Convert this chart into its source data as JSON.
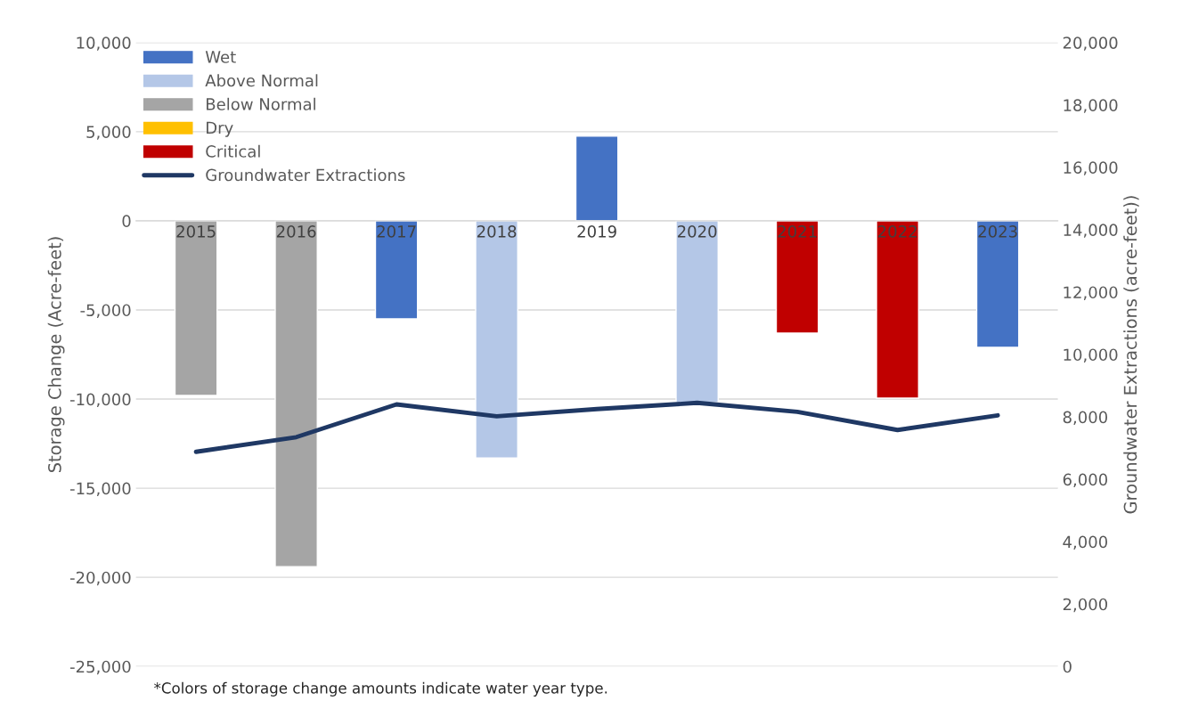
{
  "chart_data": {
    "type": "bar",
    "categories": [
      "2015",
      "2016",
      "2017",
      "2018",
      "2019",
      "2020",
      "2021",
      "2022",
      "2023"
    ],
    "ylabel": "Storage Change (Acre-feet)",
    "y2label": "Groundwater Extractions (acre-feet))",
    "ylim": [
      -25000,
      10000
    ],
    "yticks": [
      {
        "value": -25000,
        "label": "-25,000"
      },
      {
        "value": -20000,
        "label": "-20,000"
      },
      {
        "value": -15000,
        "label": "-15,000"
      },
      {
        "value": -10000,
        "label": "-10,000"
      },
      {
        "value": -5000,
        "label": "-5,000"
      },
      0,
      {
        "value": 5000,
        "label": "5,000"
      },
      {
        "value": 10000,
        "label": "10,000"
      }
    ],
    "y2lim": [
      0,
      20000
    ],
    "y2ticks": [
      0,
      {
        "value": 2000,
        "label": "2,000"
      },
      {
        "value": 4000,
        "label": "4,000"
      },
      {
        "value": 6000,
        "label": "6,000"
      },
      {
        "value": 8000,
        "label": "8,000"
      },
      {
        "value": 10000,
        "label": "10,000"
      },
      {
        "value": 12000,
        "label": "12,000"
      },
      {
        "value": 14000,
        "label": "14,000"
      },
      {
        "value": 16000,
        "label": "16,000"
      },
      {
        "value": 18000,
        "label": "18,000"
      },
      {
        "value": 20000,
        "label": "20,000"
      }
    ],
    "series": [
      {
        "name": "Wet",
        "color": "#4472c4",
        "values": [
          null,
          null,
          -5500,
          null,
          4750,
          null,
          null,
          null,
          -7100
        ]
      },
      {
        "name": "Above Normal",
        "color": "#b4c7e7",
        "values": [
          null,
          null,
          null,
          -13300,
          null,
          -10200,
          null,
          null,
          null
        ]
      },
      {
        "name": "Below Normal",
        "color": "#a5a5a5",
        "values": [
          -9800,
          -19400,
          null,
          null,
          null,
          null,
          null,
          null,
          null
        ]
      },
      {
        "name": "Dry",
        "color": "#ffc000",
        "values": [
          null,
          null,
          null,
          null,
          null,
          null,
          null,
          null,
          null
        ]
      },
      {
        "name": "Critical",
        "color": "#c00000",
        "values": [
          null,
          null,
          null,
          null,
          null,
          null,
          -6300,
          -9950,
          null
        ]
      },
      {
        "name": "Groundwater Extractions",
        "type": "line",
        "axis": "y2",
        "color": "#1f3864",
        "values": [
          6880,
          7350,
          8400,
          8020,
          8250,
          8450,
          8160,
          7580,
          8050
        ]
      }
    ],
    "grid": "y",
    "legend": "top left",
    "marker": "none",
    "line_style": "solid",
    "annotations": [
      "*Colors of storage change amounts indicate water year type."
    ]
  }
}
